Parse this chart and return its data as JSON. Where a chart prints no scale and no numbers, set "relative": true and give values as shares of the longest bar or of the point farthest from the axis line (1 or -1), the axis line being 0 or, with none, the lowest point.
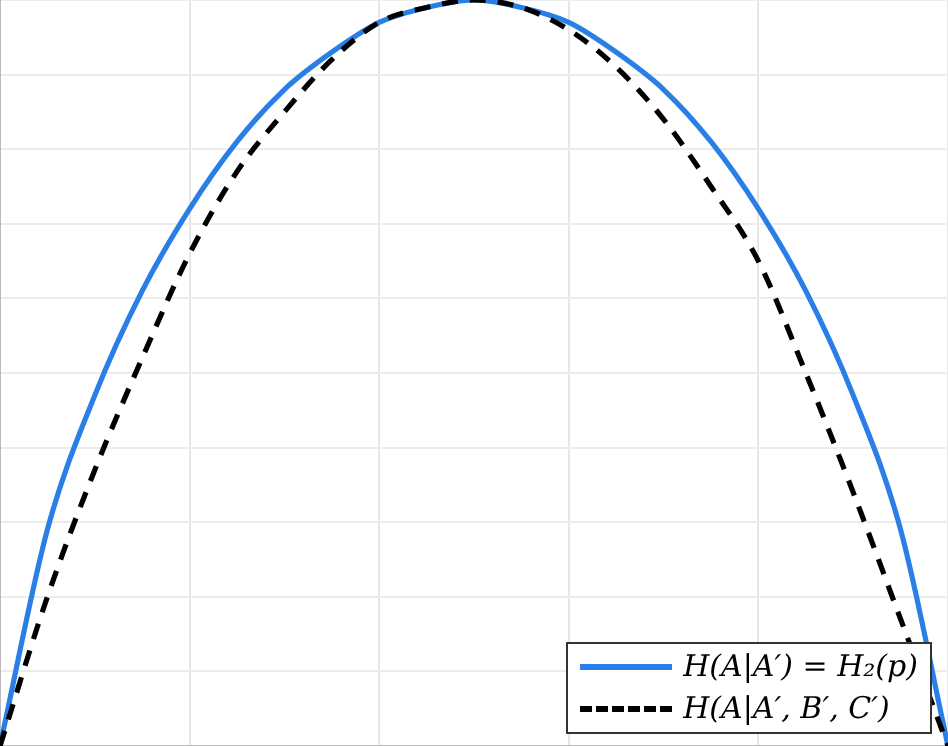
{
  "chart_data": {
    "type": "line",
    "relative": true,
    "grid": true,
    "legend": "bottom right",
    "marker": "none",
    "categories": [
      null,
      null,
      null,
      null,
      null,
      null,
      null,
      null,
      null,
      null,
      null,
      null,
      null,
      null,
      null,
      null,
      null,
      null,
      null,
      null,
      null
    ],
    "series": [
      {
        "name": "H(A|A′) = H₂(p)",
        "color": "#2a7fe6",
        "line_style": "solid",
        "values": [
          0,
          0.29,
          0.47,
          0.61,
          0.72,
          0.81,
          0.88,
          0.93,
          0.97,
          0.99,
          1,
          0.99,
          0.97,
          0.93,
          0.88,
          0.81,
          0.72,
          0.61,
          0.47,
          0.29,
          0
        ]
      },
      {
        "name": "H(A|A′, B′, C′)",
        "color": "#000000",
        "line_style": "dashed",
        "values": [
          0,
          0.2,
          0.37,
          0.52,
          0.66,
          0.77,
          0.85,
          0.92,
          0.97,
          0.99,
          1,
          0.99,
          0.96,
          0.91,
          0.84,
          0.75,
          0.65,
          0.5,
          0.34,
          0.17,
          0
        ]
      }
    ]
  }
}
